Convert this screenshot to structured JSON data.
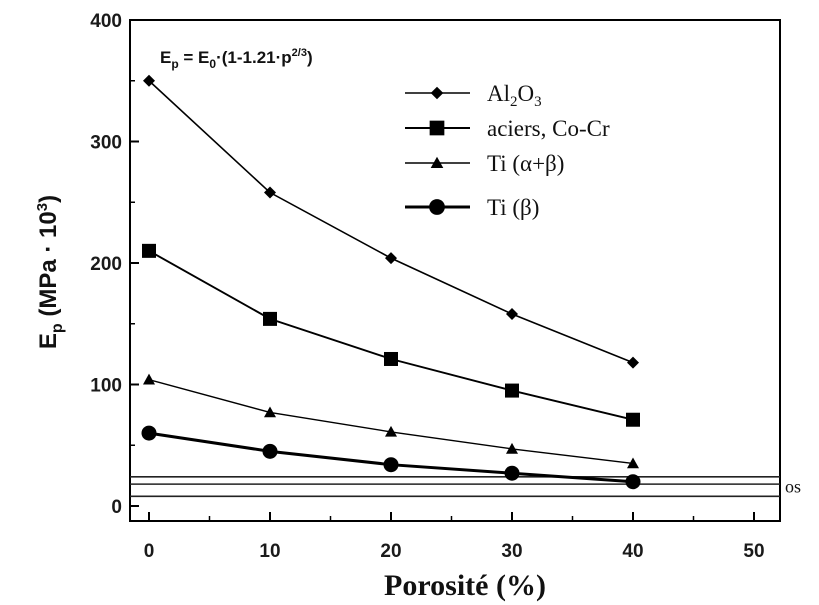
{
  "chart_data": {
    "type": "line",
    "xlabel": "Porosité (%)",
    "ylabel": "E_p (MPa · 10³)",
    "formula": "E_p = E_0·(1-1.21·p^(2/3))",
    "xlim": [
      0,
      50
    ],
    "ylim": [
      0,
      400
    ],
    "xticks": [
      0,
      10,
      20,
      30,
      40,
      50
    ],
    "yticks": [
      0,
      100,
      200,
      300,
      400
    ],
    "x": [
      0,
      10,
      20,
      30,
      40
    ],
    "series": [
      {
        "name": "Al2O3",
        "marker": "diamond",
        "values": [
          350,
          258,
          204,
          158,
          118
        ]
      },
      {
        "name": "aciers, Co-Cr",
        "marker": "square",
        "values": [
          210,
          154,
          121,
          95,
          71
        ]
      },
      {
        "name": "Ti (α+β)",
        "marker": "triangle",
        "values": [
          104,
          77,
          61,
          47,
          35
        ]
      },
      {
        "name": "Ti (β)",
        "marker": "circle",
        "values": [
          60,
          45,
          34,
          27,
          20
        ]
      }
    ],
    "bone_band": {
      "label": "os",
      "lines": [
        24,
        18,
        8
      ]
    },
    "legend_position": "top-right",
    "grid": false
  }
}
